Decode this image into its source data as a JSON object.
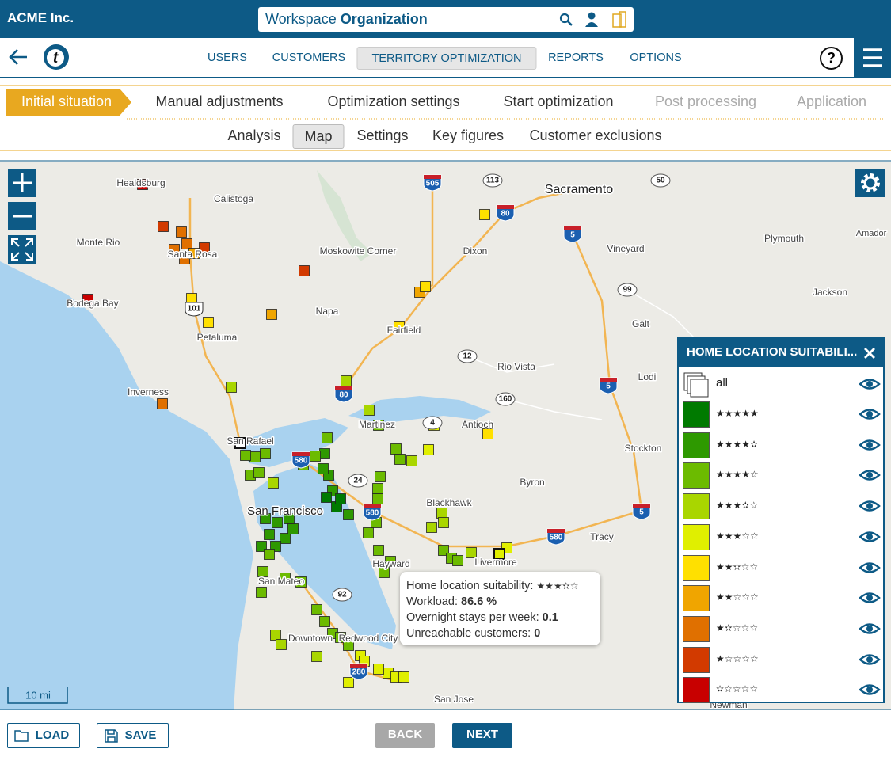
{
  "header": {
    "company": "ACME Inc.",
    "workspace_prefix": "Workspace",
    "workspace_name": "Organization"
  },
  "nav": {
    "tabs": [
      "USERS",
      "CUSTOMERS",
      "TERRITORY OPTIMIZATION",
      "REPORTS",
      "OPTIONS"
    ],
    "active": 2,
    "help": "?"
  },
  "steps": {
    "items": [
      "Initial situation",
      "Manual adjustments",
      "Optimization settings",
      "Start optimization",
      "Post processing",
      "Application"
    ],
    "active": 0,
    "disabled_from": 4
  },
  "subtabs": {
    "items": [
      "Analysis",
      "Map",
      "Settings",
      "Key figures",
      "Customer exclusions"
    ],
    "active": 1
  },
  "map": {
    "places": [
      "Healdsburg",
      "Calistoga",
      "Sacramento",
      "Monte Rio",
      "Santa Rosa",
      "Moskowite Corner",
      "Dixon",
      "Vineyard",
      "Plymouth",
      "Amador",
      "Bodega Bay",
      "Napa",
      "Jackson",
      "Galt",
      "Petaluma",
      "Fairfield",
      "Rio Vista",
      "Lodi",
      "Inverness",
      "San Rafael",
      "Martinez",
      "Antioch",
      "Stockton",
      "Byron",
      "San Francisco",
      "Blackhawk",
      "Tracy",
      "Hayward",
      "Livermore",
      "San Mateo",
      "Downtown",
      "Redwood City",
      "San Jose",
      "Newman"
    ],
    "shields": [
      "505",
      "113",
      "80",
      "5",
      "50",
      "101",
      "99",
      "12",
      "80",
      "160",
      "4",
      "5",
      "580",
      "24",
      "580",
      "5",
      "580",
      "92",
      "280"
    ],
    "scale": "10 mi",
    "tooltip": {
      "rows": [
        {
          "label": "Home location suitability:",
          "value": "★★★✫☆"
        },
        {
          "label": "Workload:",
          "value": "86.6 %"
        },
        {
          "label": "Overnight stays per week:",
          "value": "0.1"
        },
        {
          "label": "Unreachable customers:",
          "value": "0"
        }
      ]
    }
  },
  "legend": {
    "title": "HOME LOCATION SUITABILI...",
    "all": "all",
    "items": [
      {
        "stars": "★★★★★",
        "color": "#007a00"
      },
      {
        "stars": "★★★★✫",
        "color": "#2e9900"
      },
      {
        "stars": "★★★★☆",
        "color": "#6cbb00"
      },
      {
        "stars": "★★★✫☆",
        "color": "#a9d600"
      },
      {
        "stars": "★★★☆☆",
        "color": "#e0ef00"
      },
      {
        "stars": "★★✫☆☆",
        "color": "#ffe000"
      },
      {
        "stars": "★★☆☆☆",
        "color": "#f0a500"
      },
      {
        "stars": "★✫☆☆☆",
        "color": "#e07000"
      },
      {
        "stars": "★☆☆☆☆",
        "color": "#d23a00"
      },
      {
        "stars": "✫☆☆☆☆",
        "color": "#c80000"
      }
    ]
  },
  "footer": {
    "load": "LOAD",
    "save": "SAVE",
    "back": "BACK",
    "next": "NEXT"
  }
}
